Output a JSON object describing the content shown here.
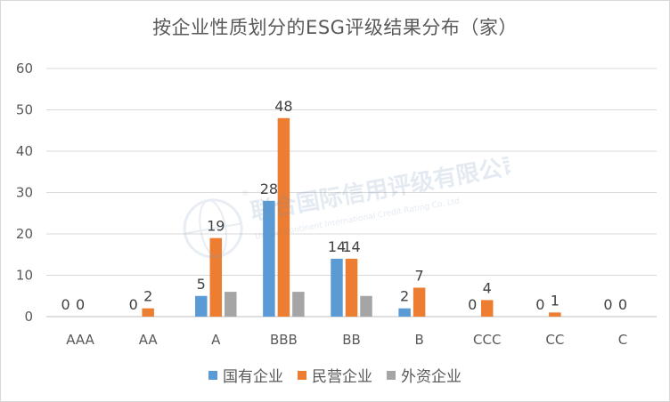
{
  "chart_data": {
    "type": "bar",
    "title": "按企业性质划分的ESG评级结果分布（家）",
    "categories": [
      "AAA",
      "AA",
      "A",
      "BBB",
      "BB",
      "B",
      "CCC",
      "CC",
      "C"
    ],
    "series": [
      {
        "name": "国有企业",
        "color": "#5b9bd5",
        "values": [
          0,
          0,
          5,
          28,
          14,
          2,
          0,
          0,
          0
        ],
        "labels": [
          true,
          true,
          true,
          true,
          true,
          true,
          true,
          true,
          true
        ]
      },
      {
        "name": "民营企业",
        "color": "#ed7d31",
        "values": [
          0,
          2,
          19,
          48,
          14,
          7,
          4,
          1,
          0
        ],
        "labels": [
          true,
          true,
          true,
          true,
          true,
          true,
          true,
          true,
          true
        ]
      },
      {
        "name": "外资企业",
        "color": "#a5a5a5",
        "values": [
          0,
          0,
          6,
          6,
          5,
          0,
          0,
          0,
          0
        ],
        "labels": [
          false,
          false,
          false,
          false,
          false,
          false,
          false,
          false,
          false
        ]
      }
    ],
    "ylim": [
      0,
      60
    ],
    "yticks": [
      0,
      10,
      20,
      30,
      40,
      50,
      60
    ],
    "grid": true,
    "legend": "bottom"
  },
  "watermark": {
    "name_cn": "联合国际信用评级有限公司",
    "name_en": "United Continent International Credit Rating Co. Ltd",
    "mark": "®"
  }
}
